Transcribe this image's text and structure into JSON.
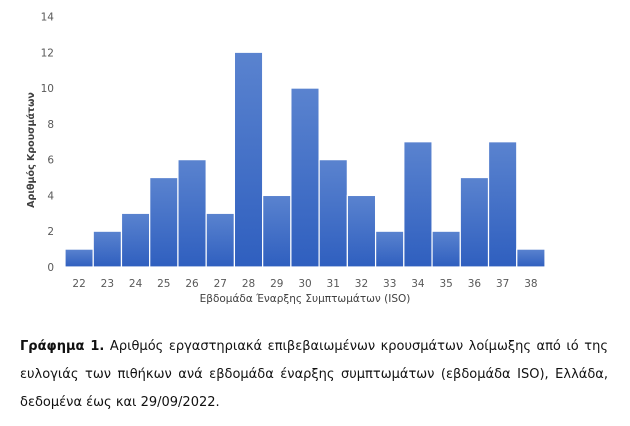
{
  "chart_data": {
    "type": "bar",
    "title": "",
    "xlabel": "Εβδομάδα Έναρξης Συμπτωμάτων (ISO)",
    "ylabel": "Αριθμός Κρουσμάτων",
    "categories": [
      "22",
      "23",
      "24",
      "25",
      "26",
      "27",
      "28",
      "29",
      "30",
      "31",
      "32",
      "33",
      "34",
      "35",
      "36",
      "37",
      "38"
    ],
    "values": [
      1,
      2,
      3,
      5,
      6,
      3,
      12,
      4,
      10,
      6,
      4,
      2,
      7,
      2,
      5,
      7,
      1
    ],
    "ylim": [
      0,
      14
    ],
    "yticks": [
      0,
      2,
      4,
      6,
      8,
      10,
      12,
      14
    ],
    "grid": false,
    "legend": "none",
    "bar_color": "#4472C4"
  },
  "caption": {
    "label": "Γράφημα 1.",
    "text": " Αριθμός εργαστηριακά επιβεβαιωμένων κρουσμάτων λοίμωξης από ιό της ευλογιάς των πιθήκων ανά εβδομάδα έναρξης συμπτωμάτων (εβδομάδα ISO), Ελλάδα, δεδομένα έως και 29/09/2022."
  }
}
